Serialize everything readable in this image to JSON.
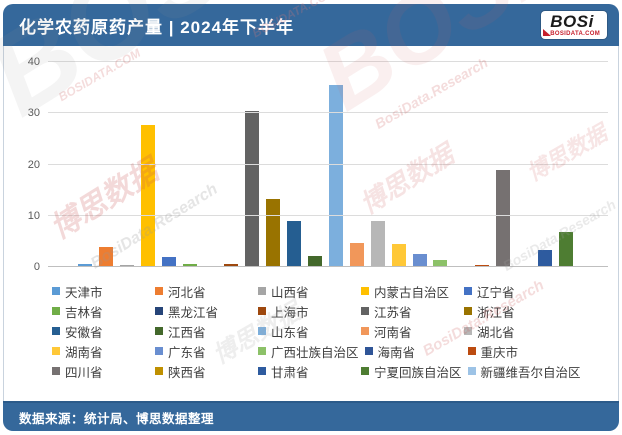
{
  "header": {
    "title": "化学农药原药产量 | 2024年下半年",
    "logo_text": "BOSi",
    "logo_domain": "BOSIDATA.COM"
  },
  "footer": {
    "source": "数据来源：统计局、博思数据整理"
  },
  "watermarks": [
    "BOSi",
    "博思数据",
    "BosiData.Research",
    "BOSIDATA.COM"
  ],
  "colors": {
    "header_bg": "#35689B",
    "grid": "#DCDCDC",
    "axis_text": "#595959",
    "logo_red": "#C7202C"
  },
  "chart_data": {
    "type": "bar",
    "title": "化学农药原药产量 | 2024年下半年",
    "xlabel": "",
    "ylabel": "",
    "ylim": [
      0,
      40
    ],
    "yticks": [
      0,
      10,
      20,
      30,
      40
    ],
    "grid": "horizontal",
    "legend_position": "bottom",
    "categories": [
      "天津市",
      "河北省",
      "山西省",
      "内蒙古自治区",
      "辽宁省",
      "吉林省",
      "黑龙江省",
      "上海市",
      "江苏省",
      "浙江省",
      "安徽省",
      "江西省",
      "山东省",
      "河南省",
      "湖北省",
      "湖南省",
      "广东省",
      "广西壮族自治区",
      "海南省",
      "重庆市",
      "四川省",
      "陕西省",
      "甘肃省",
      "宁夏回族自治区",
      "新疆维吾尔自治区"
    ],
    "values": [
      0.6,
      3.9,
      0.3,
      27.7,
      2.0,
      0.6,
      0.2,
      0.6,
      30.5,
      13.3,
      8.9,
      2.2,
      35.5,
      4.6,
      8.9,
      4.5,
      2.6,
      1.3,
      0.2,
      0.3,
      19.0,
      0.2,
      3.4,
      6.9,
      0.2
    ],
    "bar_colors": [
      "#5B9BD5",
      "#ED7D31",
      "#A5A5A5",
      "#FFC000",
      "#4472C4",
      "#70AD47",
      "#264478",
      "#9E480E",
      "#636363",
      "#997300",
      "#255E91",
      "#43682B",
      "#7CAFDD",
      "#F1975A",
      "#B7B7B7",
      "#FFC837",
      "#698ED0",
      "#8CC168",
      "#2F5597",
      "#BC4B10",
      "#767171",
      "#BF9000",
      "#2E5B9F",
      "#4E7D32",
      "#9DC3E6"
    ]
  }
}
